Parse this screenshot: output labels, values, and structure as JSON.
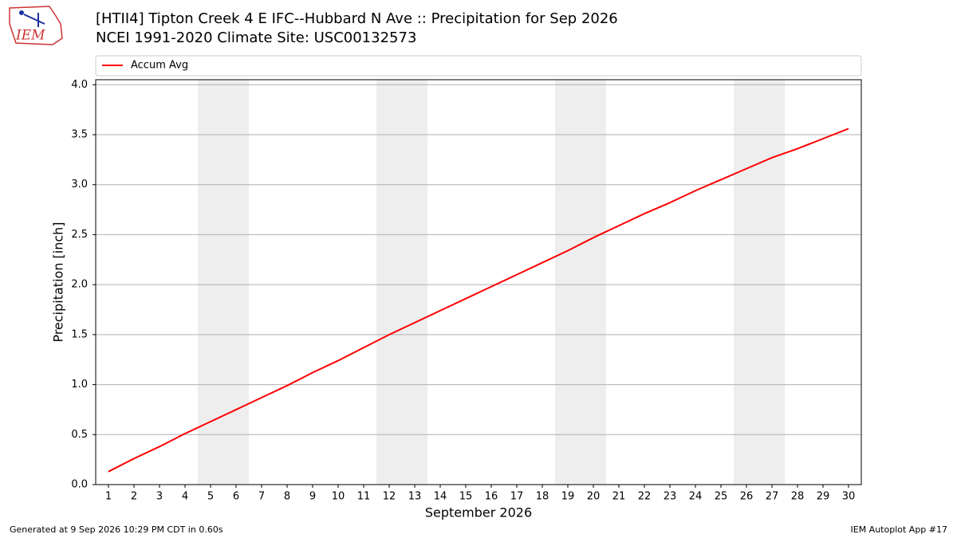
{
  "logo": {
    "text": "IEM"
  },
  "chart_data": {
    "type": "line",
    "title": "[HTII4] Tipton Creek 4 E IFC--Hubbard N Ave :: Precipitation for Sep 2026",
    "subtitle": "NCEI 1991-2020 Climate Site: USC00132573",
    "x_label": "September 2026",
    "y_label": "Precipitation [inch]",
    "x": [
      1,
      2,
      3,
      4,
      5,
      6,
      7,
      8,
      9,
      10,
      11,
      12,
      13,
      14,
      15,
      16,
      17,
      18,
      19,
      20,
      21,
      22,
      23,
      24,
      25,
      26,
      27,
      28,
      29,
      30
    ],
    "series": [
      {
        "name": "Accum Avg",
        "color": "#ff0000",
        "values": [
          0.13,
          0.26,
          0.38,
          0.51,
          0.63,
          0.75,
          0.87,
          0.99,
          1.12,
          1.24,
          1.37,
          1.5,
          1.62,
          1.74,
          1.86,
          1.98,
          2.1,
          2.22,
          2.34,
          2.47,
          2.59,
          2.71,
          2.82,
          2.94,
          3.05,
          3.16,
          3.27,
          3.36,
          3.46,
          3.56
        ]
      }
    ],
    "xlim": [
      0.5,
      30.5
    ],
    "xticks": [
      1,
      2,
      3,
      4,
      5,
      6,
      7,
      8,
      9,
      10,
      11,
      12,
      13,
      14,
      15,
      16,
      17,
      18,
      19,
      20,
      21,
      22,
      23,
      24,
      25,
      26,
      27,
      28,
      29,
      30
    ],
    "ylim": [
      0,
      4.05
    ],
    "yticks": [
      {
        "value": 0,
        "label": "0.0"
      },
      {
        "value": 0.5,
        "label": "0.5"
      },
      {
        "value": 1,
        "label": "1.0"
      },
      {
        "value": 1.5,
        "label": "1.5"
      },
      {
        "value": 2,
        "label": "2.0"
      },
      {
        "value": 2.5,
        "label": "2.5"
      },
      {
        "value": 3,
        "label": "3.0"
      },
      {
        "value": 3.5,
        "label": "3.5"
      },
      {
        "value": 4,
        "label": "4.0"
      }
    ],
    "shaded_ranges": [
      [
        4.5,
        6.5
      ],
      [
        11.5,
        13.5
      ],
      [
        18.5,
        20.5
      ],
      [
        25.5,
        27.5
      ]
    ],
    "grid": true,
    "legend": "top"
  },
  "footer": {
    "left": "Generated at 9 Sep 2026 10:29 PM CDT in 0.60s",
    "right": "IEM Autoplot App #17"
  }
}
